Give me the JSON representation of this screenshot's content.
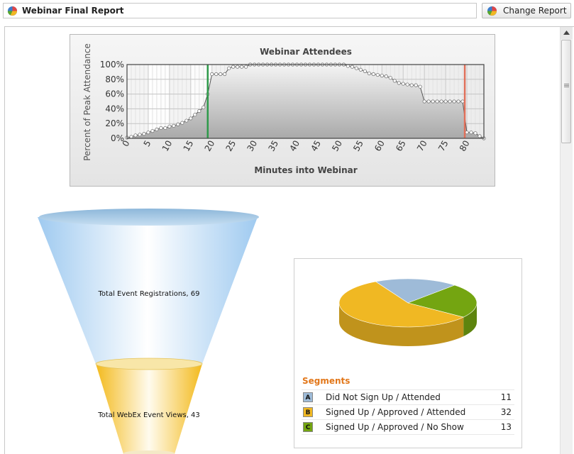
{
  "header": {
    "title": "Webinar Final Report",
    "change_report_label": "Change Report",
    "report_icon": "pie-chart-icon"
  },
  "chart_data": [
    {
      "type": "line",
      "title": "Webinar Attendees",
      "xlabel": "Minutes into Webinar",
      "ylabel": "Percent of Peak Attendance",
      "xlim": [
        0,
        84
      ],
      "ylim": [
        0,
        100
      ],
      "x_ticks": [
        "0",
        "5",
        "10",
        "15",
        "20",
        "25",
        "30",
        "35",
        "40",
        "45",
        "50",
        "55",
        "60",
        "65",
        "70",
        "75",
        "80"
      ],
      "y_ticks": [
        "0%",
        "20%",
        "40%",
        "60%",
        "80%",
        "100%"
      ],
      "grid": true,
      "markers": [
        {
          "x": 19,
          "color": "#2e9a4a"
        },
        {
          "x": 79.5,
          "color": "#e0705a"
        }
      ],
      "series": [
        {
          "x": [
            0,
            1,
            2,
            3,
            4,
            5,
            6,
            7,
            8,
            9,
            10,
            11,
            12,
            13,
            14,
            15,
            16,
            17,
            18,
            19,
            20,
            21,
            22,
            23,
            24,
            25,
            26,
            27,
            28,
            29,
            30,
            31,
            32,
            33,
            34,
            35,
            36,
            37,
            38,
            39,
            40,
            41,
            42,
            43,
            44,
            45,
            46,
            47,
            48,
            49,
            50,
            51,
            52,
            53,
            54,
            55,
            56,
            57,
            58,
            59,
            60,
            61,
            62,
            63,
            64,
            65,
            66,
            67,
            68,
            69,
            70,
            71,
            72,
            73,
            74,
            75,
            76,
            77,
            78,
            79,
            80,
            81,
            82,
            83,
            84
          ],
          "y": [
            1,
            2,
            4,
            5,
            6,
            8,
            10,
            12,
            14,
            14,
            16,
            17,
            19,
            21,
            24,
            27,
            32,
            37,
            42,
            60,
            87,
            87,
            87,
            87,
            95,
            97,
            97,
            97,
            97,
            100,
            100,
            100,
            100,
            100,
            100,
            100,
            100,
            100,
            100,
            100,
            100,
            100,
            100,
            100,
            100,
            100,
            100,
            100,
            100,
            100,
            100,
            100,
            98,
            97,
            95,
            93,
            91,
            88,
            87,
            86,
            85,
            84,
            82,
            78,
            75,
            74,
            73,
            72,
            72,
            70,
            50,
            50,
            50,
            50,
            50,
            50,
            50,
            50,
            50,
            50,
            8,
            8,
            7,
            3,
            0
          ]
        }
      ]
    },
    {
      "type": "funnel",
      "stages": [
        {
          "label": "Total Event Registrations, 69",
          "value": 69,
          "color": "#bcdcf4"
        },
        {
          "label": "Total WebEx Event Views, 43",
          "value": 43,
          "color": "#f5c230"
        }
      ]
    },
    {
      "type": "pie",
      "legend_title": "Segments",
      "slices": [
        {
          "key": "A",
          "label": "Did Not Sign Up / Attended",
          "value": 11,
          "color": "#9ebbd8"
        },
        {
          "key": "B",
          "label": "Signed Up / Approved / Attended",
          "value": 32,
          "color": "#f0b823"
        },
        {
          "key": "C",
          "label": "Signed Up / Approved / No Show",
          "value": 13,
          "color": "#74a511"
        }
      ]
    }
  ]
}
